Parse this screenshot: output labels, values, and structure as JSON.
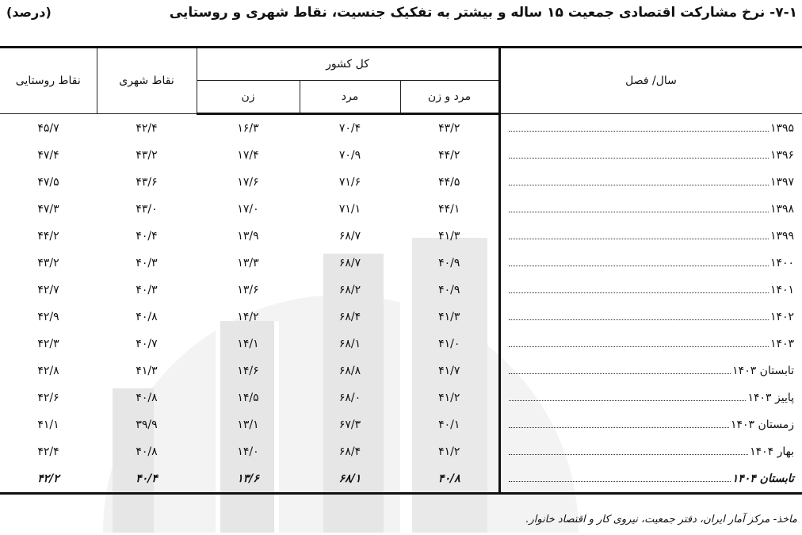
{
  "title": "۷-۱- نرخ مشارکت اقتصادی جمعیت ۱۵ ساله و بیشتر به تفکیک جنسیت، نقاط شهری و روستایی",
  "unit": "(درصد)",
  "headers": {
    "year": "سال/ فصل",
    "total": "کل کشور",
    "both": "مرد و زن",
    "male": "مرد",
    "female": "زن",
    "urban": "نقاط شهری",
    "rural": "نقاط روستایی"
  },
  "rows": [
    {
      "year": "۱۳۹۵",
      "both": "۴۳/۲",
      "male": "۷۰/۴",
      "female": "۱۶/۳",
      "urban": "۴۲/۴",
      "rural": "۴۵/۷"
    },
    {
      "year": "۱۳۹۶",
      "both": "۴۴/۲",
      "male": "۷۰/۹",
      "female": "۱۷/۴",
      "urban": "۴۳/۲",
      "rural": "۴۷/۴"
    },
    {
      "year": "۱۳۹۷",
      "both": "۴۴/۵",
      "male": "۷۱/۶",
      "female": "۱۷/۶",
      "urban": "۴۳/۶",
      "rural": "۴۷/۵"
    },
    {
      "year": "۱۳۹۸",
      "both": "۴۴/۱",
      "male": "۷۱/۱",
      "female": "۱۷/۰",
      "urban": "۴۳/۰",
      "rural": "۴۷/۳"
    },
    {
      "year": "۱۳۹۹",
      "both": "۴۱/۳",
      "male": "۶۸/۷",
      "female": "۱۳/۹",
      "urban": "۴۰/۴",
      "rural": "۴۴/۲"
    },
    {
      "year": "۱۴۰۰",
      "both": "۴۰/۹",
      "male": "۶۸/۷",
      "female": "۱۳/۳",
      "urban": "۴۰/۳",
      "rural": "۴۳/۲"
    },
    {
      "year": "۱۴۰۱",
      "both": "۴۰/۹",
      "male": "۶۸/۲",
      "female": "۱۳/۶",
      "urban": "۴۰/۳",
      "rural": "۴۲/۷"
    },
    {
      "year": "۱۴۰۲",
      "both": "۴۱/۳",
      "male": "۶۸/۴",
      "female": "۱۴/۲",
      "urban": "۴۰/۸",
      "rural": "۴۲/۹"
    },
    {
      "year": "۱۴۰۳",
      "both": "۴۱/۰",
      "male": "۶۸/۱",
      "female": "۱۴/۱",
      "urban": "۴۰/۷",
      "rural": "۴۲/۳"
    },
    {
      "year": "تابستان ۱۴۰۳",
      "both": "۴۱/۷",
      "male": "۶۸/۸",
      "female": "۱۴/۶",
      "urban": "۴۱/۳",
      "rural": "۴۲/۸"
    },
    {
      "year": "پاییز ۱۴۰۳",
      "both": "۴۱/۲",
      "male": "۶۸/۰",
      "female": "۱۴/۵",
      "urban": "۴۰/۸",
      "rural": "۴۲/۶"
    },
    {
      "year": "زمستان ۱۴۰۳",
      "both": "۴۰/۱",
      "male": "۶۷/۳",
      "female": "۱۳/۱",
      "urban": "۳۹/۹",
      "rural": "۴۱/۱"
    },
    {
      "year": "بهار ۱۴۰۴",
      "both": "۴۱/۲",
      "male": "۶۸/۴",
      "female": "۱۴/۰",
      "urban": "۴۰/۸",
      "rural": "۴۲/۴"
    },
    {
      "year": "تابستان ۱۴۰۴",
      "both": "۴۰/۸",
      "male": "۶۸/۱",
      "female": "۱۳/۶",
      "urban": "۴۰/۴",
      "rural": "۴۲/۲"
    }
  ],
  "source": "ماخذ- مرکز آمار ایران، دفتر جمعیت، نیروی کار و اقتصاد خانوار.",
  "colors": {
    "watermark": "#ececec",
    "rule": "#111111"
  }
}
